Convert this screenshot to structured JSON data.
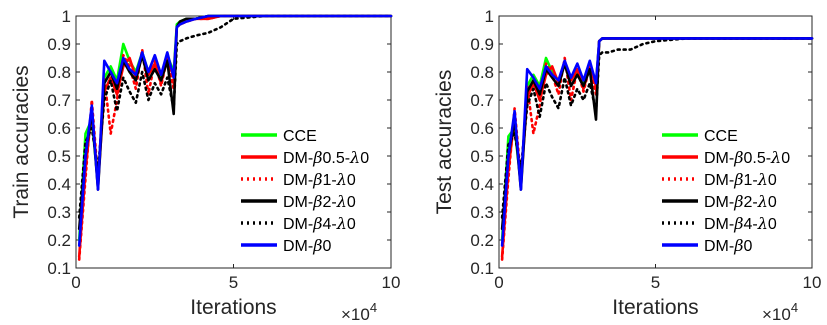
{
  "chart_data": [
    {
      "type": "line",
      "title": "",
      "xlabel": "Iterations",
      "ylabel": "Train accuracies",
      "x_multiplier_label": "×10",
      "x_multiplier_exp": "4",
      "xlim": [
        0,
        10
      ],
      "ylim": [
        0.1,
        1
      ],
      "xticks": [
        "0",
        "5",
        "10"
      ],
      "yticks": [
        "0.1",
        "0.2",
        "0.3",
        "0.4",
        "0.5",
        "0.6",
        "0.7",
        "0.8",
        "0.9",
        "1"
      ],
      "legend_position": "bottom-right",
      "x": [
        0.1,
        0.3,
        0.5,
        0.7,
        0.9,
        1.1,
        1.3,
        1.5,
        1.7,
        1.9,
        2.1,
        2.3,
        2.5,
        2.7,
        2.9,
        3.1,
        3.2,
        3.3,
        3.5,
        3.8,
        4.2,
        4.6,
        5.0,
        6.0,
        7.0,
        8.0,
        9.0,
        10.0
      ],
      "series": [
        {
          "name": "CCE",
          "color": "#00ff00",
          "dash": "solid",
          "values": [
            0.2,
            0.58,
            0.63,
            0.4,
            0.78,
            0.82,
            0.77,
            0.9,
            0.84,
            0.8,
            0.87,
            0.8,
            0.82,
            0.78,
            0.86,
            0.8,
            0.97,
            0.98,
            0.99,
            0.99,
            1.0,
            1.0,
            1.0,
            1.0,
            1.0,
            1.0,
            1.0,
            1.0
          ]
        },
        {
          "name": "DM-β0.5-λ0",
          "color": "#ff0000",
          "dash": "solid",
          "values": [
            0.14,
            0.45,
            0.67,
            0.4,
            0.73,
            0.78,
            0.72,
            0.82,
            0.85,
            0.78,
            0.86,
            0.79,
            0.83,
            0.76,
            0.85,
            0.78,
            0.96,
            0.97,
            0.98,
            0.99,
            0.99,
            1.0,
            1.0,
            1.0,
            1.0,
            1.0,
            1.0,
            1.0
          ]
        },
        {
          "name": "DM-β1-λ0",
          "color": "#ff0000",
          "dash": "dotted",
          "values": [
            0.13,
            0.42,
            0.7,
            0.42,
            0.78,
            0.58,
            0.7,
            0.86,
            0.82,
            0.74,
            0.88,
            0.72,
            0.84,
            0.75,
            0.85,
            0.74,
            0.96,
            0.97,
            0.98,
            0.99,
            0.99,
            1.0,
            1.0,
            1.0,
            1.0,
            1.0,
            1.0,
            1.0
          ]
        },
        {
          "name": "DM-β2-λ0",
          "color": "#000000",
          "dash": "solid",
          "values": [
            0.24,
            0.5,
            0.66,
            0.38,
            0.76,
            0.8,
            0.74,
            0.84,
            0.8,
            0.77,
            0.86,
            0.77,
            0.81,
            0.77,
            0.84,
            0.65,
            0.96,
            0.98,
            0.99,
            0.99,
            1.0,
            1.0,
            1.0,
            1.0,
            1.0,
            1.0,
            1.0,
            1.0
          ]
        },
        {
          "name": "DM-β4-λ0",
          "color": "#000000",
          "dash": "dotted",
          "values": [
            0.28,
            0.55,
            0.6,
            0.45,
            0.7,
            0.77,
            0.66,
            0.78,
            0.73,
            0.69,
            0.8,
            0.7,
            0.76,
            0.72,
            0.78,
            0.67,
            0.9,
            0.91,
            0.92,
            0.93,
            0.94,
            0.96,
            0.99,
            1.0,
            1.0,
            1.0,
            1.0,
            1.0
          ]
        },
        {
          "name": "DM-β0",
          "color": "#0000ff",
          "dash": "solid",
          "values": [
            0.18,
            0.5,
            0.68,
            0.38,
            0.84,
            0.8,
            0.76,
            0.85,
            0.81,
            0.79,
            0.87,
            0.8,
            0.86,
            0.79,
            0.87,
            0.78,
            0.96,
            0.97,
            0.98,
            0.99,
            1.0,
            1.0,
            1.0,
            1.0,
            1.0,
            1.0,
            1.0,
            1.0
          ]
        }
      ]
    },
    {
      "type": "line",
      "title": "",
      "xlabel": "Iterations",
      "ylabel": "Test accuracies",
      "x_multiplier_label": "×10",
      "x_multiplier_exp": "4",
      "xlim": [
        0,
        10
      ],
      "ylim": [
        0.1,
        1
      ],
      "xticks": [
        "0",
        "5",
        "10"
      ],
      "yticks": [
        "0.1",
        "0.2",
        "0.3",
        "0.4",
        "0.5",
        "0.6",
        "0.7",
        "0.8",
        "0.9",
        "1"
      ],
      "legend_position": "bottom-right",
      "x": [
        0.1,
        0.3,
        0.5,
        0.7,
        0.9,
        1.1,
        1.3,
        1.5,
        1.7,
        1.9,
        2.1,
        2.3,
        2.5,
        2.7,
        2.9,
        3.1,
        3.2,
        3.3,
        3.5,
        3.8,
        4.2,
        4.6,
        5.0,
        6.0,
        7.0,
        8.0,
        9.0,
        10.0
      ],
      "series": [
        {
          "name": "CCE",
          "color": "#00ff00",
          "dash": "solid",
          "values": [
            0.2,
            0.57,
            0.6,
            0.4,
            0.75,
            0.79,
            0.75,
            0.85,
            0.8,
            0.77,
            0.83,
            0.78,
            0.8,
            0.76,
            0.82,
            0.76,
            0.91,
            0.92,
            0.92,
            0.92,
            0.92,
            0.92,
            0.92,
            0.92,
            0.92,
            0.92,
            0.92,
            0.92
          ]
        },
        {
          "name": "DM-β0.5-λ0",
          "color": "#ff0000",
          "dash": "solid",
          "values": [
            0.14,
            0.45,
            0.64,
            0.4,
            0.71,
            0.76,
            0.7,
            0.79,
            0.82,
            0.76,
            0.84,
            0.77,
            0.81,
            0.74,
            0.82,
            0.75,
            0.91,
            0.92,
            0.92,
            0.92,
            0.92,
            0.92,
            0.92,
            0.92,
            0.92,
            0.92,
            0.92,
            0.92
          ]
        },
        {
          "name": "DM-β1-λ0",
          "color": "#ff0000",
          "dash": "dotted",
          "values": [
            0.13,
            0.42,
            0.67,
            0.42,
            0.75,
            0.58,
            0.68,
            0.83,
            0.79,
            0.72,
            0.85,
            0.7,
            0.81,
            0.73,
            0.82,
            0.72,
            0.91,
            0.92,
            0.92,
            0.92,
            0.92,
            0.92,
            0.92,
            0.92,
            0.92,
            0.92,
            0.92,
            0.92
          ]
        },
        {
          "name": "DM-β2-λ0",
          "color": "#000000",
          "dash": "solid",
          "values": [
            0.24,
            0.5,
            0.63,
            0.38,
            0.73,
            0.77,
            0.72,
            0.81,
            0.78,
            0.75,
            0.83,
            0.75,
            0.79,
            0.75,
            0.81,
            0.63,
            0.91,
            0.92,
            0.92,
            0.92,
            0.92,
            0.92,
            0.92,
            0.92,
            0.92,
            0.92,
            0.92,
            0.92
          ]
        },
        {
          "name": "DM-β4-λ0",
          "color": "#000000",
          "dash": "dotted",
          "values": [
            0.28,
            0.54,
            0.58,
            0.45,
            0.68,
            0.74,
            0.64,
            0.76,
            0.71,
            0.67,
            0.78,
            0.68,
            0.74,
            0.7,
            0.76,
            0.66,
            0.86,
            0.87,
            0.87,
            0.88,
            0.88,
            0.9,
            0.91,
            0.92,
            0.92,
            0.92,
            0.92,
            0.92
          ]
        },
        {
          "name": "DM-β0",
          "color": "#0000ff",
          "dash": "solid",
          "values": [
            0.18,
            0.5,
            0.66,
            0.38,
            0.81,
            0.78,
            0.74,
            0.82,
            0.79,
            0.77,
            0.84,
            0.78,
            0.83,
            0.77,
            0.84,
            0.76,
            0.91,
            0.92,
            0.92,
            0.92,
            0.92,
            0.92,
            0.92,
            0.92,
            0.92,
            0.92,
            0.92,
            0.92
          ]
        }
      ]
    }
  ]
}
